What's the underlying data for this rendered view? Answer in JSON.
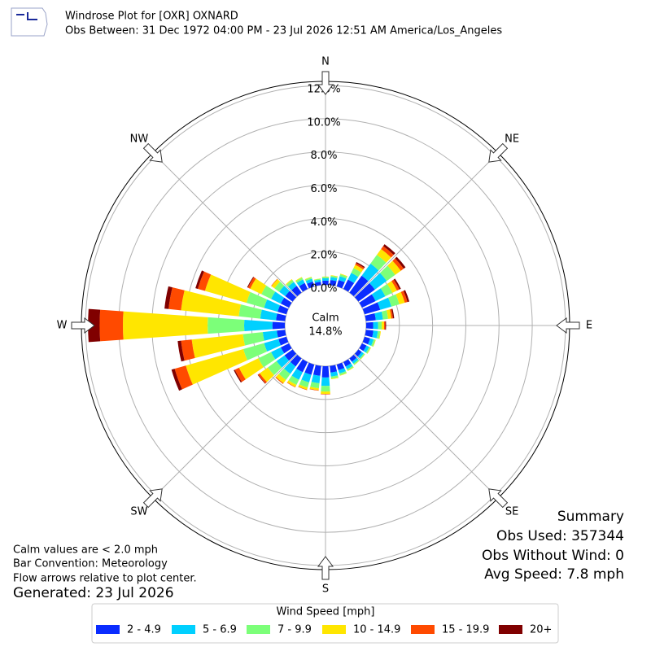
{
  "chart_data": {
    "type": "windrose",
    "title": "Windrose Plot for [OXR] OXNARD",
    "subtitle": "Obs Between: 31 Dec 1972 04:00 PM - 23 Jul 2026 12:51 AM America/Los_Angeles",
    "logo_text": "IEM",
    "direction_labels": [
      "N",
      "NE",
      "E",
      "SE",
      "S",
      "SW",
      "W",
      "NW"
    ],
    "x": [
      0,
      10,
      20,
      30,
      40,
      50,
      60,
      70,
      80,
      90,
      100,
      110,
      120,
      130,
      140,
      150,
      160,
      170,
      180,
      190,
      200,
      210,
      220,
      230,
      240,
      250,
      260,
      270,
      280,
      290,
      300,
      310,
      320,
      330,
      340,
      350
    ],
    "ylim": [
      0,
      12.25
    ],
    "yticks": [
      {
        "value": 0,
        "label": "0.0%"
      },
      {
        "value": 2,
        "label": "2.0%"
      },
      {
        "value": 4,
        "label": "4.0%"
      },
      {
        "value": 6,
        "label": "6.0%"
      },
      {
        "value": 8,
        "label": "8.0%"
      },
      {
        "value": 10,
        "label": "10.0%"
      },
      {
        "value": 12,
        "label": "12.0%"
      }
    ],
    "grid": true,
    "calm_label": "Calm",
    "calm_value": 14.8,
    "calm_value_label": "14.8%",
    "legend_title": "Wind Speed [mph]",
    "series": [
      {
        "name": "2 - 4.9",
        "color": "#0a2cff",
        "values": [
          0.25,
          0.3,
          0.4,
          0.63,
          1.26,
          1.23,
          0.91,
          0.98,
          0.6,
          0.42,
          0.45,
          0.35,
          0.3,
          0.25,
          0.25,
          0.3,
          0.35,
          0.4,
          0.68,
          0.6,
          0.64,
          0.68,
          0.6,
          0.6,
          0.55,
          0.5,
          0.5,
          0.75,
          0.55,
          0.55,
          0.55,
          0.55,
          0.5,
          0.4,
          0.3,
          0.2
        ]
      },
      {
        "name": "5 - 6.9",
        "color": "#00d0ff",
        "values": [
          0.15,
          0.18,
          0.24,
          0.45,
          0.9,
          0.88,
          0.65,
          0.7,
          0.43,
          0.3,
          0.27,
          0.21,
          0.18,
          0.15,
          0.15,
          0.18,
          0.21,
          0.24,
          0.51,
          0.45,
          0.48,
          0.51,
          0.55,
          0.6,
          0.65,
          0.9,
          0.85,
          1.7,
          0.95,
          0.85,
          0.65,
          0.45,
          0.3,
          0.24,
          0.18,
          0.12
        ]
      },
      {
        "name": "7 - 9.9",
        "color": "#7cff79",
        "values": [
          0.08,
          0.09,
          0.12,
          0.32,
          0.65,
          0.63,
          0.47,
          0.5,
          0.31,
          0.22,
          0.14,
          0.11,
          0.09,
          0.08,
          0.08,
          0.09,
          0.11,
          0.12,
          0.34,
          0.3,
          0.32,
          0.34,
          0.45,
          0.65,
          0.85,
          1.3,
          1.2,
          2.2,
          1.3,
          1.1,
          0.65,
          0.35,
          0.15,
          0.12,
          0.09,
          0.06
        ]
      },
      {
        "name": "10 - 14.9",
        "color": "#ffe600",
        "values": [
          0.02,
          0.03,
          0.04,
          0.22,
          0.43,
          0.42,
          0.31,
          0.34,
          0.2,
          0.14,
          0.04,
          0.03,
          0.03,
          0.02,
          0.02,
          0.03,
          0.03,
          0.04,
          0.14,
          0.12,
          0.13,
          0.14,
          0.25,
          0.6,
          1.3,
          3.6,
          3.1,
          5.1,
          3.5,
          2.6,
          0.75,
          0.22,
          0.05,
          0.04,
          0.03,
          0.02
        ]
      },
      {
        "name": "15 - 19.9",
        "color": "#ff4a00",
        "values": [
          0,
          0,
          0,
          0.11,
          0.22,
          0.21,
          0.16,
          0.17,
          0.1,
          0.07,
          0,
          0,
          0,
          0,
          0,
          0,
          0,
          0,
          0.03,
          0.03,
          0.03,
          0.03,
          0.05,
          0.12,
          0.28,
          0.7,
          0.65,
          1.4,
          0.75,
          0.45,
          0.15,
          0.03,
          0,
          0,
          0,
          0
        ]
      },
      {
        "name": "20+",
        "color": "#800000",
        "values": [
          0,
          0,
          0,
          0.07,
          0.14,
          0.14,
          0.1,
          0.11,
          0.07,
          0.05,
          0,
          0,
          0,
          0,
          0,
          0,
          0,
          0,
          0,
          0,
          0,
          0,
          0,
          0.03,
          0.07,
          0.2,
          0.2,
          0.7,
          0.25,
          0.15,
          0.05,
          0,
          0,
          0,
          0,
          0
        ]
      }
    ]
  },
  "summary": {
    "title": "Summary",
    "lines": [
      "Obs Used: 357344",
      "Obs Without Wind: 0",
      "Avg Speed: 7.8 mph"
    ]
  },
  "notes": [
    "Calm values are < 2.0 mph",
    "Bar Convention: Meteorology",
    "Flow arrows relative to plot center."
  ],
  "generated": "Generated: 23 Jul 2026"
}
